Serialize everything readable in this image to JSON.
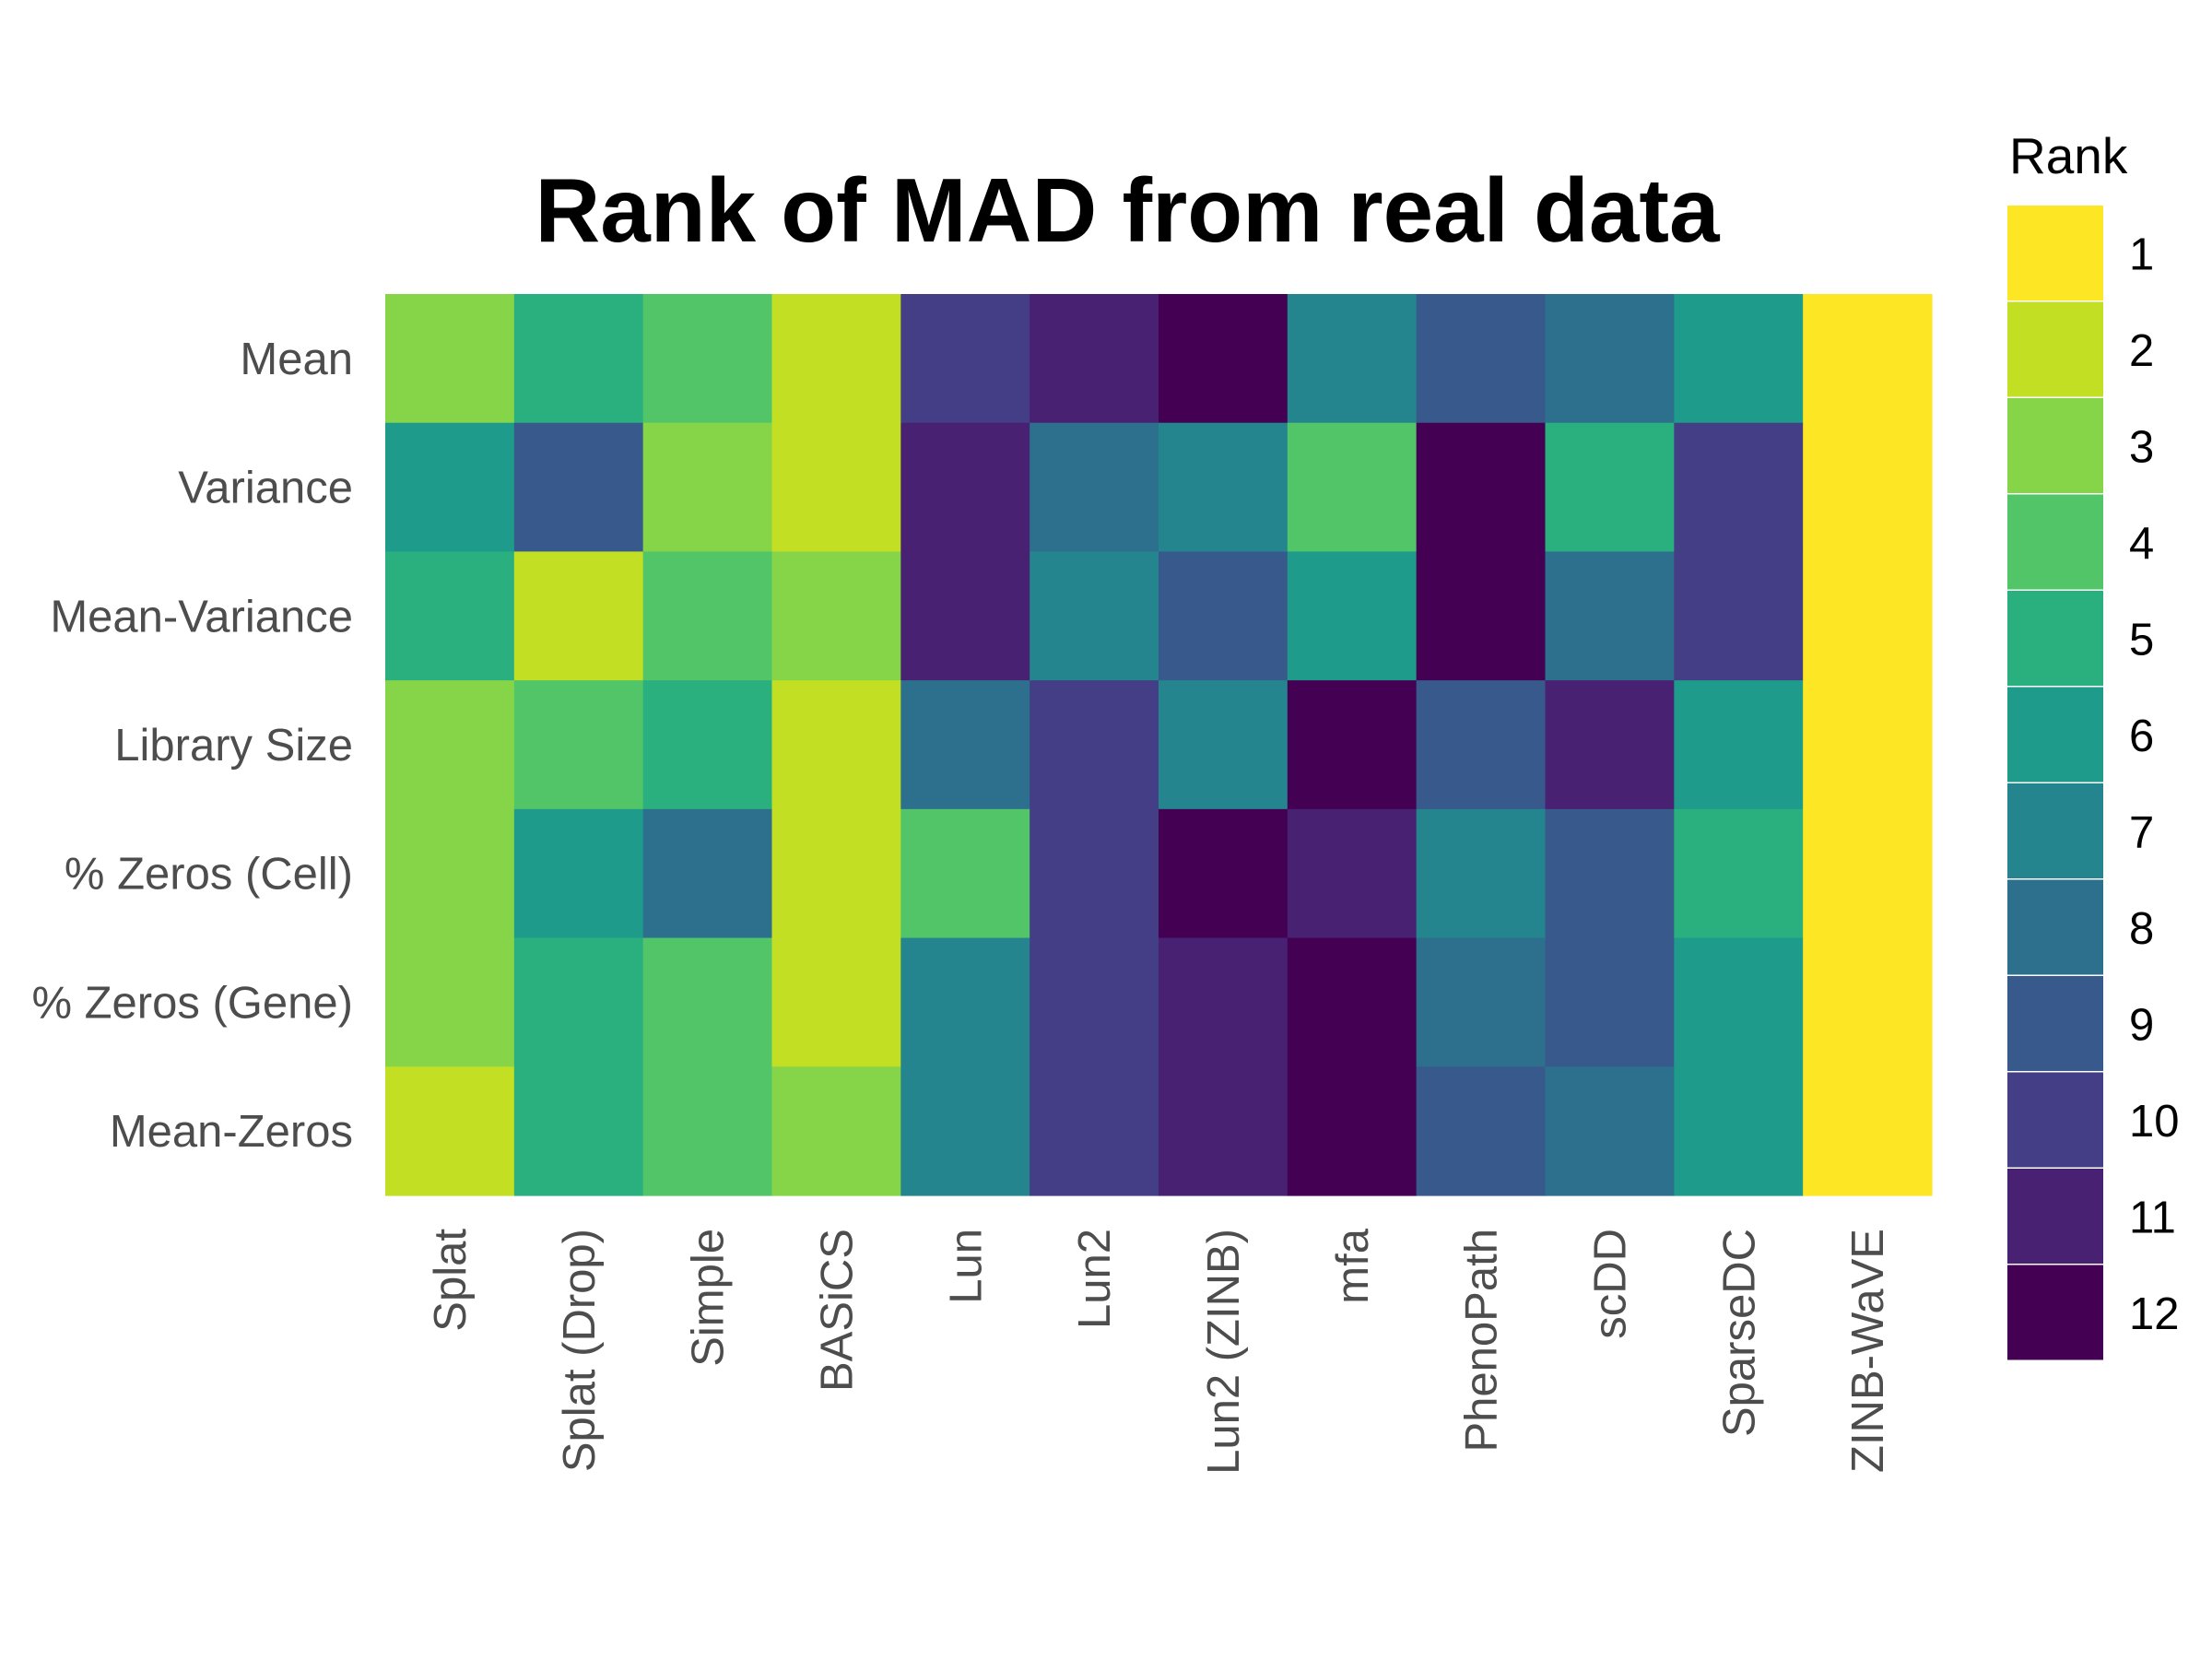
{
  "chart_data": {
    "type": "heatmap",
    "title": "Rank of MAD from real data",
    "rows": [
      "Mean",
      "Variance",
      "Mean-Variance",
      "Library Size",
      "% Zeros (Cell)",
      "% Zeros (Gene)",
      "Mean-Zeros"
    ],
    "columns": [
      "Splat",
      "Splat (Drop)",
      "Simple",
      "BASiCS",
      "Lun",
      "Lun2",
      "Lun2 (ZINB)",
      "mfa",
      "PhenoPath",
      "scDD",
      "SparseDC",
      "ZINB-WaVE"
    ],
    "values": [
      [
        3,
        5,
        4,
        2,
        10,
        11,
        12,
        7,
        9,
        8,
        6,
        1
      ],
      [
        6,
        9,
        3,
        2,
        11,
        8,
        7,
        4,
        12,
        5,
        10,
        1
      ],
      [
        5,
        2,
        4,
        3,
        11,
        7,
        9,
        6,
        12,
        8,
        10,
        1
      ],
      [
        3,
        4,
        5,
        2,
        8,
        10,
        7,
        12,
        9,
        11,
        6,
        1
      ],
      [
        3,
        6,
        8,
        2,
        4,
        10,
        12,
        11,
        7,
        9,
        5,
        1
      ],
      [
        3,
        5,
        4,
        2,
        7,
        10,
        11,
        12,
        8,
        9,
        6,
        1
      ],
      [
        2,
        5,
        4,
        3,
        7,
        10,
        11,
        12,
        9,
        8,
        6,
        1
      ]
    ],
    "legend": {
      "title": "Rank",
      "position": "right",
      "levels": [
        "1",
        "2",
        "3",
        "4",
        "5",
        "6",
        "7",
        "8",
        "9",
        "10",
        "11",
        "12"
      ],
      "colors": [
        "#FDE725",
        "#C2DF23",
        "#86D549",
        "#52C569",
        "#2AB07F",
        "#1E9B8A",
        "#25858E",
        "#2D708E",
        "#38598C",
        "#433E85",
        "#482173",
        "#440154"
      ]
    },
    "xlabel": "",
    "ylabel": "",
    "grid": false
  }
}
